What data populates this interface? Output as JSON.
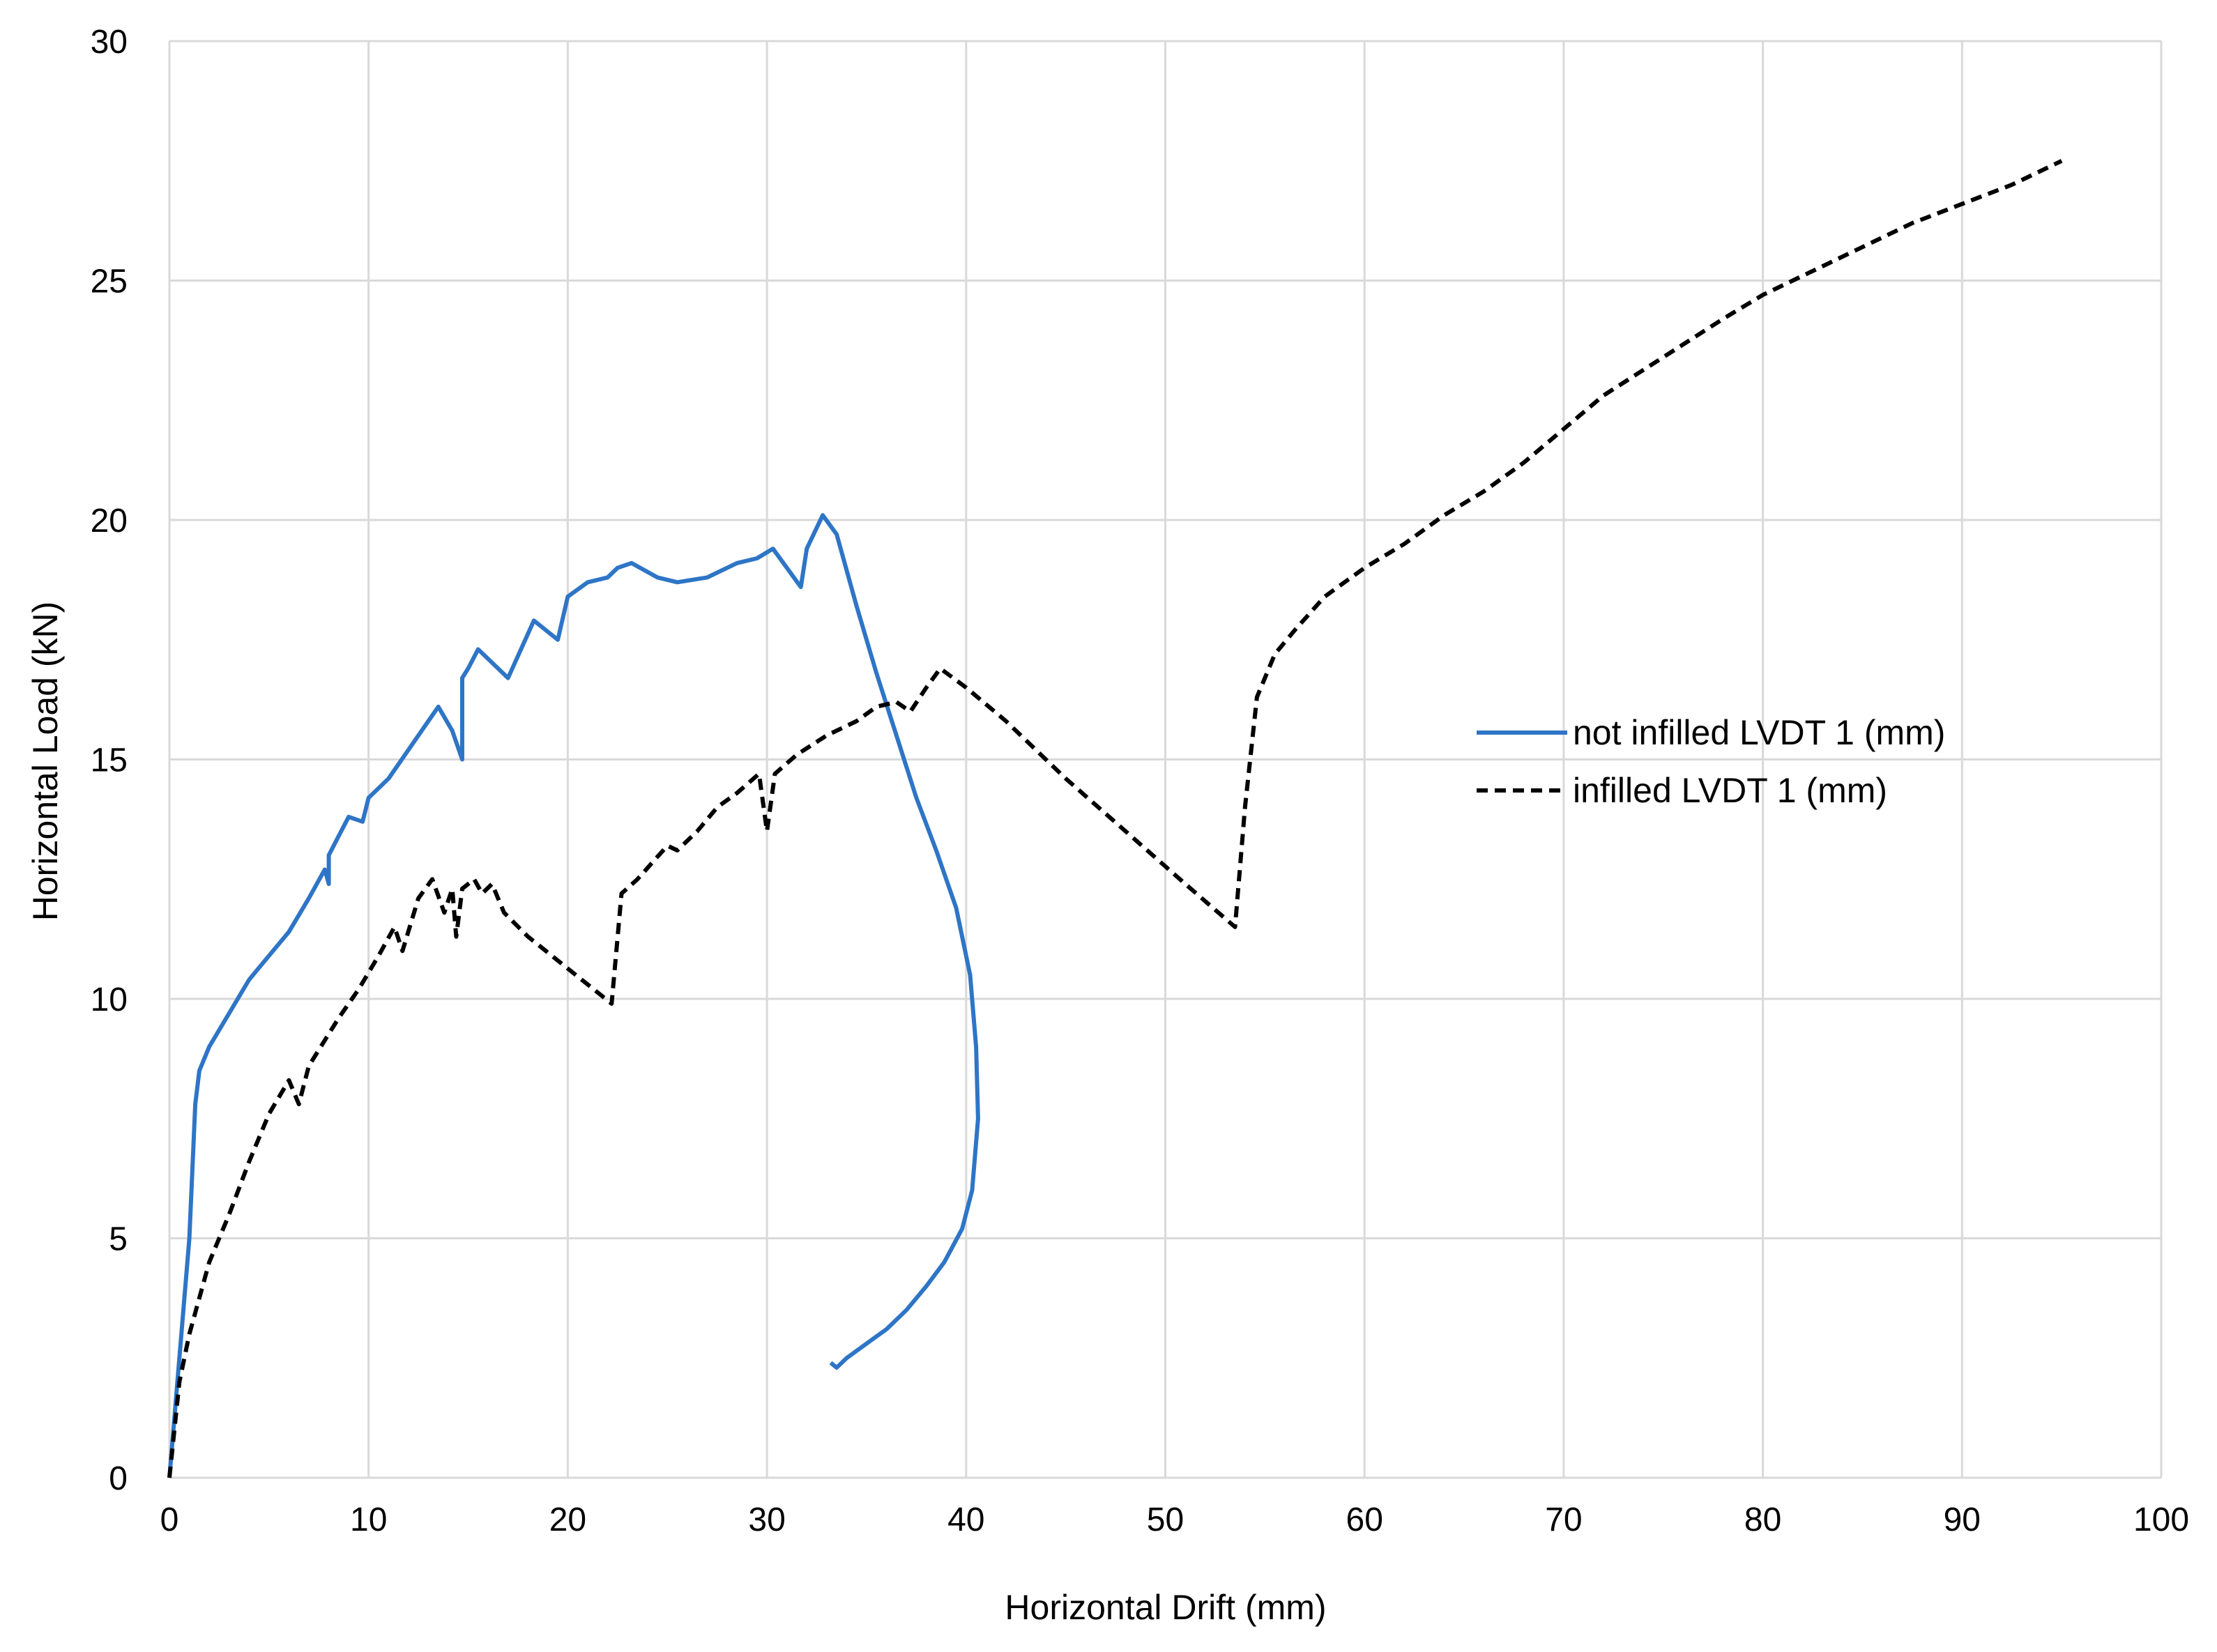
{
  "chart_data": {
    "type": "line",
    "xlabel": "Horizontal Drift (mm)",
    "ylabel": "Horizontal Load (kN)",
    "xlim": [
      0,
      100
    ],
    "ylim": [
      0,
      30
    ],
    "xticks": [
      0,
      10,
      20,
      30,
      40,
      50,
      60,
      70,
      80,
      90,
      100
    ],
    "yticks": [
      0,
      5,
      10,
      15,
      20,
      25,
      30
    ],
    "grid": true,
    "legend_position": "right",
    "colors": {
      "gridline": "#d9d9d9"
    },
    "series": [
      {
        "name": "not infilled LVDT 1 (mm)",
        "color": "#2e75c6",
        "style": "solid",
        "points": [
          [
            0,
            0
          ],
          [
            0.5,
            2.5
          ],
          [
            1,
            5
          ],
          [
            1.3,
            7.8
          ],
          [
            1.5,
            8.5
          ],
          [
            2,
            9
          ],
          [
            3,
            9.7
          ],
          [
            4,
            10.4
          ],
          [
            4.8,
            10.8
          ],
          [
            6,
            11.4
          ],
          [
            7,
            12.1
          ],
          [
            7.8,
            12.7
          ],
          [
            8,
            12.4
          ],
          [
            8,
            13
          ],
          [
            8.5,
            13.4
          ],
          [
            9,
            13.8
          ],
          [
            9.7,
            13.7
          ],
          [
            10,
            14.2
          ],
          [
            11,
            14.6
          ],
          [
            12,
            15.2
          ],
          [
            13,
            15.8
          ],
          [
            13.5,
            16.1
          ],
          [
            14.2,
            15.6
          ],
          [
            14.7,
            15
          ],
          [
            14.7,
            16.7
          ],
          [
            15,
            16.9
          ],
          [
            15.5,
            17.3
          ],
          [
            17,
            16.7
          ],
          [
            18.3,
            17.9
          ],
          [
            19.5,
            17.5
          ],
          [
            20,
            18.4
          ],
          [
            21,
            18.7
          ],
          [
            22,
            18.8
          ],
          [
            22.5,
            19
          ],
          [
            23.2,
            19.1
          ],
          [
            24.5,
            18.8
          ],
          [
            25.5,
            18.7
          ],
          [
            27,
            18.8
          ],
          [
            28.5,
            19.1
          ],
          [
            29.5,
            19.2
          ],
          [
            30.3,
            19.4
          ],
          [
            31,
            19
          ],
          [
            31.7,
            18.6
          ],
          [
            32,
            19.4
          ],
          [
            32.8,
            20.1
          ],
          [
            33.5,
            19.7
          ],
          [
            34.5,
            18.2
          ],
          [
            35.5,
            16.8
          ],
          [
            36.5,
            15.5
          ],
          [
            37.5,
            14.2
          ],
          [
            38.5,
            13.1
          ],
          [
            39.5,
            11.9
          ],
          [
            40.2,
            10.5
          ],
          [
            40.5,
            9
          ],
          [
            40.6,
            7.5
          ],
          [
            40.3,
            6
          ],
          [
            39.8,
            5.2
          ],
          [
            38.9,
            4.5
          ],
          [
            38,
            4
          ],
          [
            37,
            3.5
          ],
          [
            36,
            3.1
          ],
          [
            35,
            2.8
          ],
          [
            34,
            2.5
          ],
          [
            33.5,
            2.3
          ],
          [
            33.2,
            2.4
          ]
        ]
      },
      {
        "name": "infilled LVDT 1 (mm)",
        "color": "#000000",
        "style": "dashed",
        "points": [
          [
            0,
            0
          ],
          [
            0.5,
            2
          ],
          [
            1,
            3
          ],
          [
            2,
            4.5
          ],
          [
            3,
            5.5
          ],
          [
            4,
            6.6
          ],
          [
            5,
            7.6
          ],
          [
            6,
            8.3
          ],
          [
            6.5,
            7.8
          ],
          [
            7,
            8.6
          ],
          [
            8.5,
            9.6
          ],
          [
            9.5,
            10.2
          ],
          [
            10.5,
            10.9
          ],
          [
            11.3,
            11.5
          ],
          [
            11.7,
            11
          ],
          [
            12.5,
            12.1
          ],
          [
            13.2,
            12.5
          ],
          [
            13.8,
            11.8
          ],
          [
            14.2,
            12.3
          ],
          [
            14.4,
            11.3
          ],
          [
            14.7,
            12.3
          ],
          [
            15.3,
            12.5
          ],
          [
            15.7,
            12.2
          ],
          [
            16.2,
            12.4
          ],
          [
            16.8,
            11.8
          ],
          [
            18,
            11.3
          ],
          [
            19.5,
            10.8
          ],
          [
            21,
            10.3
          ],
          [
            22.2,
            9.9
          ],
          [
            22.7,
            12.2
          ],
          [
            23.5,
            12.5
          ],
          [
            25,
            13.2
          ],
          [
            25.5,
            13.1
          ],
          [
            26.5,
            13.5
          ],
          [
            27.5,
            14
          ],
          [
            28.5,
            14.3
          ],
          [
            29.6,
            14.7
          ],
          [
            30,
            13.5
          ],
          [
            30.4,
            14.7
          ],
          [
            31.5,
            15.1
          ],
          [
            33,
            15.5
          ],
          [
            34.5,
            15.8
          ],
          [
            35.5,
            16.1
          ],
          [
            36.5,
            16.2
          ],
          [
            37.2,
            16
          ],
          [
            38,
            16.5
          ],
          [
            38.7,
            16.9
          ],
          [
            40,
            16.5
          ],
          [
            42,
            15.8
          ],
          [
            45,
            14.6
          ],
          [
            48,
            13.5
          ],
          [
            51,
            12.4
          ],
          [
            53.5,
            11.5
          ],
          [
            54,
            14
          ],
          [
            54.6,
            16.3
          ],
          [
            55.5,
            17.2
          ],
          [
            56.5,
            17.7
          ],
          [
            58,
            18.4
          ],
          [
            60,
            19
          ],
          [
            62,
            19.5
          ],
          [
            64,
            20.1
          ],
          [
            66,
            20.6
          ],
          [
            68,
            21.2
          ],
          [
            70,
            21.9
          ],
          [
            72,
            22.6
          ],
          [
            75,
            23.4
          ],
          [
            78,
            24.2
          ],
          [
            80,
            24.7
          ],
          [
            82.5,
            25.2
          ],
          [
            85,
            25.7
          ],
          [
            87.5,
            26.2
          ],
          [
            90,
            26.6
          ],
          [
            92.5,
            27
          ],
          [
            95,
            27.5
          ]
        ]
      }
    ]
  }
}
